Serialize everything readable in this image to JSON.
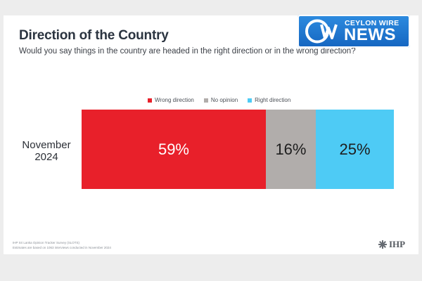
{
  "header": {
    "title": "Direction of the Country",
    "subtitle": "Would you say things in the country are headed in the right direction or in the wrong direction?"
  },
  "logo": {
    "top_text": "CEYLON WIRE",
    "main_text": "NEWS",
    "mark_text": "CW"
  },
  "footer": {
    "source_line1": "IHP Sri Lanka Opinion Tracker Survey (SLOTS)",
    "source_line2": "Estimates are based on 1063 interviews conducted in November 2024",
    "org": "IHP"
  },
  "chart_data": {
    "type": "bar",
    "orientation": "horizontal-stacked",
    "categories": [
      "November 2024"
    ],
    "series": [
      {
        "name": "Wrong direction",
        "values": [
          59
        ],
        "label": "59%",
        "color": "#e8202a",
        "text_color": "#ffffff"
      },
      {
        "name": "No opinion",
        "values": [
          16
        ],
        "label": "16%",
        "color": "#b1adab",
        "text_color": "#1e1e1e"
      },
      {
        "name": "Right direction",
        "values": [
          25
        ],
        "label": "25%",
        "color": "#4ecbf5",
        "text_color": "#1e1e1e"
      }
    ],
    "xlim": [
      0,
      100
    ],
    "legend_position": "top",
    "grid": false,
    "title": "Direction of the Country"
  }
}
